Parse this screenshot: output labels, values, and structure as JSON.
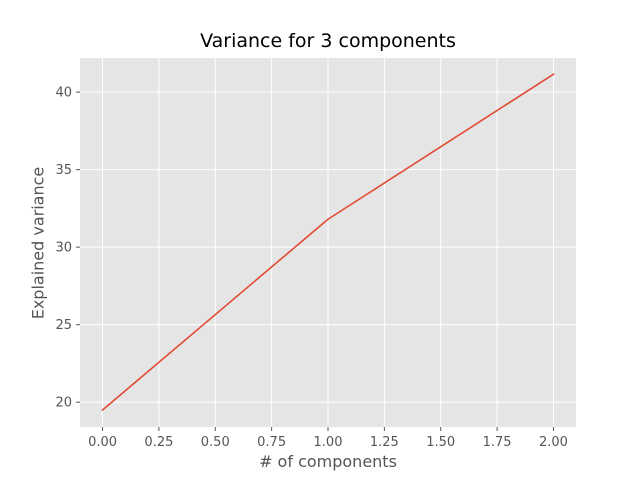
{
  "chart_data": {
    "type": "line",
    "title": "Variance for 3 components",
    "xlabel": "# of components",
    "ylabel": "Explained variance",
    "x": [
      0,
      1,
      2
    ],
    "series": [
      {
        "values": [
          19.5,
          31.8,
          41.15
        ],
        "color": "#E24A33"
      }
    ],
    "xlim": [
      -0.1,
      2.1
    ],
    "ylim": [
      18.4,
      42.2
    ],
    "xticks": [
      0,
      0.25,
      0.5,
      0.75,
      1,
      1.25,
      1.5,
      1.75,
      2
    ],
    "xtick_labels": [
      "0.00",
      "0.25",
      "0.50",
      "0.75",
      "1.00",
      "1.25",
      "1.50",
      "1.75",
      "2.00"
    ],
    "yticks": [
      20,
      25,
      30,
      35,
      40
    ],
    "ytick_labels": [
      "20",
      "25",
      "30",
      "35",
      "40"
    ],
    "grid": true,
    "style": {
      "plot_background": "#E5E5E5",
      "grid_color": "#FFFFFF",
      "tick_color": "#555555"
    }
  }
}
